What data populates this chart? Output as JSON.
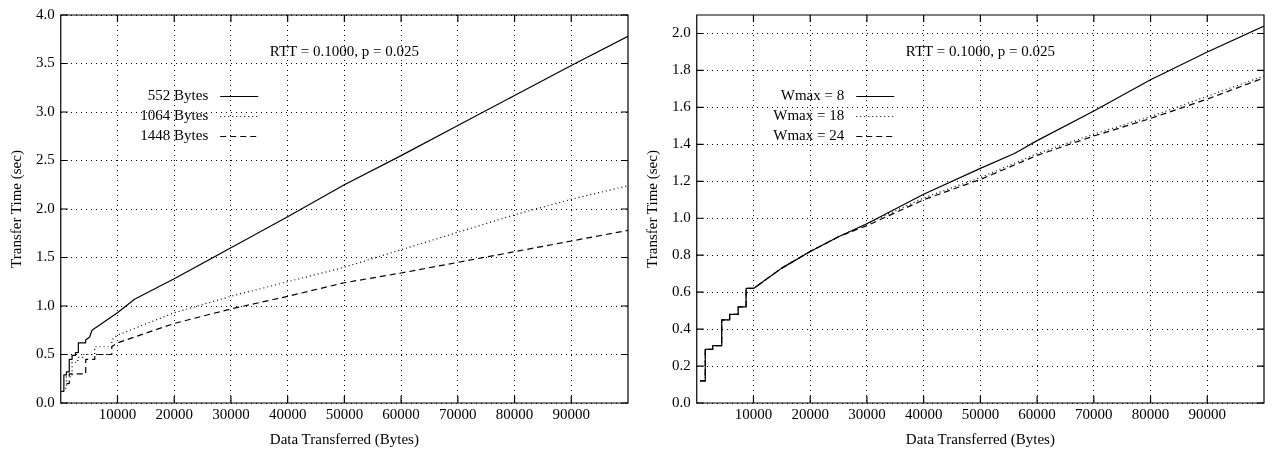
{
  "chart_data": [
    {
      "type": "line",
      "xlabel": "Data Transferred (Bytes)",
      "ylabel": "Transfer Time (sec)",
      "annotations": [
        "RTT = 0.1000, p = 0.025"
      ],
      "legend": "top left",
      "grid": true,
      "marker": "none",
      "xlim": [
        0,
        100000
      ],
      "xticks": [
        10000,
        20000,
        30000,
        40000,
        50000,
        60000,
        70000,
        80000,
        90000
      ],
      "ylim": [
        0,
        4
      ],
      "yticks": [
        {
          "value": 0,
          "label": "0.0"
        },
        {
          "value": 0.5,
          "label": "0.5"
        },
        {
          "value": 1,
          "label": "1.0"
        },
        {
          "value": 1.5,
          "label": "1.5"
        },
        {
          "value": 2,
          "label": "2.0"
        },
        {
          "value": 2.5,
          "label": "2.5"
        },
        {
          "value": 3,
          "label": "3.0"
        },
        {
          "value": 3.5,
          "label": "3.5"
        },
        {
          "value": 4,
          "label": "4.0"
        }
      ],
      "series": [
        {
          "name": "552 Bytes",
          "color": "#000000",
          "line_style": "solid",
          "x": [
            100,
            550,
            550,
            1000,
            1000,
            1500,
            1500,
            2000,
            2000,
            2600,
            2600,
            3100,
            3100,
            4400,
            4400,
            5100,
            5500,
            10000,
            13000,
            20000,
            30000,
            40000,
            50000,
            60000,
            70000,
            80000,
            90000,
            100000
          ],
          "values": [
            0.12,
            0.12,
            0.29,
            0.29,
            0.32,
            0.32,
            0.45,
            0.45,
            0.49,
            0.49,
            0.52,
            0.52,
            0.62,
            0.62,
            0.65,
            0.68,
            0.75,
            0.93,
            1.07,
            1.28,
            1.6,
            1.92,
            2.25,
            2.55,
            2.86,
            3.17,
            3.48,
            3.78
          ]
        },
        {
          "name": "1064 Bytes",
          "color": "#000000",
          "line_style": "dotted",
          "x": [
            800,
            1000,
            1000,
            2000,
            2000,
            3000,
            3000,
            4000,
            4000,
            6000,
            6000,
            9000,
            9000,
            10000,
            20000,
            30000,
            40000,
            50000,
            60000,
            70000,
            80000,
            90000,
            100000
          ],
          "values": [
            0.15,
            0.15,
            0.27,
            0.27,
            0.42,
            0.42,
            0.47,
            0.47,
            0.5,
            0.5,
            0.58,
            0.58,
            0.65,
            0.7,
            0.93,
            1.1,
            1.25,
            1.4,
            1.58,
            1.76,
            1.94,
            2.1,
            2.24
          ]
        },
        {
          "name": "1448 Bytes",
          "color": "#000000",
          "line_style": "dashed",
          "x": [
            1000,
            1500,
            1500,
            4400,
            4400,
            6000,
            6000,
            9000,
            9000,
            10000,
            20000,
            30000,
            40000,
            50000,
            60000,
            70000,
            80000,
            90000,
            100000
          ],
          "values": [
            0.2,
            0.2,
            0.3,
            0.3,
            0.45,
            0.45,
            0.5,
            0.5,
            0.58,
            0.62,
            0.82,
            0.97,
            1.1,
            1.24,
            1.34,
            1.45,
            1.56,
            1.67,
            1.78
          ]
        }
      ]
    },
    {
      "type": "line",
      "xlabel": "Data Transferred (Bytes)",
      "ylabel": "Transfer Time (sec)",
      "annotations": [
        "RTT = 0.1000, p = 0.025"
      ],
      "legend": "top left",
      "grid": true,
      "marker": "none",
      "xlim": [
        0,
        100000
      ],
      "xticks": [
        10000,
        20000,
        30000,
        40000,
        50000,
        60000,
        70000,
        80000,
        90000
      ],
      "ylim": [
        0,
        2.1
      ],
      "yticks": [
        {
          "value": 0,
          "label": "0.0"
        },
        {
          "value": 0.2,
          "label": "0.2"
        },
        {
          "value": 0.4,
          "label": "0.4"
        },
        {
          "value": 0.6,
          "label": "0.6"
        },
        {
          "value": 0.8,
          "label": "0.8"
        },
        {
          "value": 1,
          "label": "1.0"
        },
        {
          "value": 1.2,
          "label": "1.2"
        },
        {
          "value": 1.4,
          "label": "1.4"
        },
        {
          "value": 1.6,
          "label": "1.6"
        },
        {
          "value": 1.8,
          "label": "1.8"
        },
        {
          "value": 2,
          "label": "2.0"
        }
      ],
      "series": [
        {
          "name": "Wmax = 8",
          "color": "#000000",
          "line_style": "solid",
          "x": [
            600,
            1500,
            1500,
            2800,
            2800,
            4400,
            4400,
            5800,
            5800,
            7300,
            7300,
            8700,
            8700,
            10000,
            15000,
            20000,
            25000,
            30000,
            40000,
            50000,
            56000,
            60000,
            70000,
            80000,
            90000,
            100000
          ],
          "values": [
            0.12,
            0.12,
            0.29,
            0.29,
            0.31,
            0.31,
            0.45,
            0.45,
            0.48,
            0.48,
            0.52,
            0.52,
            0.62,
            0.62,
            0.73,
            0.82,
            0.9,
            0.97,
            1.13,
            1.27,
            1.35,
            1.42,
            1.58,
            1.75,
            1.9,
            2.04
          ]
        },
        {
          "name": "Wmax = 18",
          "color": "#000000",
          "line_style": "dotted",
          "x": [
            600,
            1500,
            1500,
            2800,
            2800,
            4400,
            4400,
            5800,
            5800,
            7300,
            7300,
            8700,
            8700,
            10000,
            15000,
            20000,
            25000,
            30000,
            40000,
            50000,
            60000,
            70000,
            80000,
            90000,
            100000
          ],
          "values": [
            0.12,
            0.12,
            0.29,
            0.29,
            0.31,
            0.31,
            0.45,
            0.45,
            0.48,
            0.48,
            0.52,
            0.52,
            0.62,
            0.62,
            0.73,
            0.82,
            0.9,
            0.97,
            1.11,
            1.22,
            1.35,
            1.455,
            1.55,
            1.66,
            1.77
          ]
        },
        {
          "name": "Wmax = 24",
          "color": "#000000",
          "line_style": "dashed",
          "x": [
            600,
            1500,
            1500,
            2800,
            2800,
            4400,
            4400,
            5800,
            5800,
            7300,
            7300,
            8700,
            8700,
            10000,
            15000,
            20000,
            25000,
            30000,
            40000,
            50000,
            60000,
            70000,
            80000,
            90000,
            100000
          ],
          "values": [
            0.12,
            0.12,
            0.29,
            0.29,
            0.31,
            0.31,
            0.45,
            0.45,
            0.48,
            0.48,
            0.52,
            0.52,
            0.62,
            0.62,
            0.73,
            0.82,
            0.9,
            0.96,
            1.1,
            1.21,
            1.34,
            1.445,
            1.54,
            1.645,
            1.76
          ]
        }
      ]
    }
  ]
}
